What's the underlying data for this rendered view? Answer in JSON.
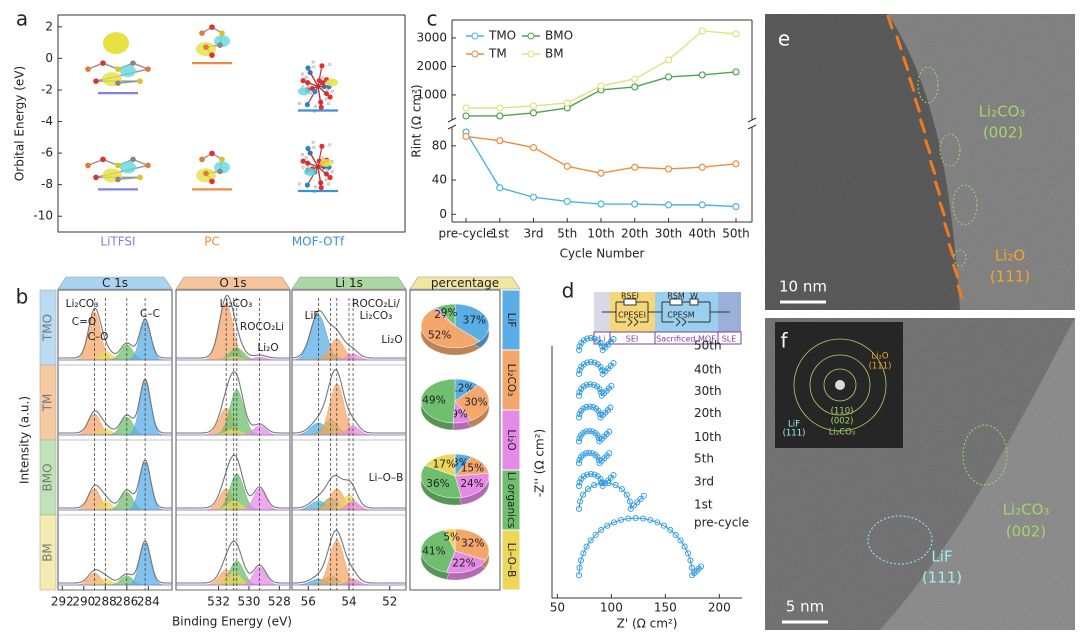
{
  "panel_a": {
    "label": "a",
    "y_label": "Orbital Energy (eV)",
    "ylim": [
      -11,
      2.75
    ],
    "yticks": [
      -10,
      -8,
      -6,
      -4,
      -2,
      0,
      2
    ],
    "molecules": [
      {
        "name": "LiTFSI",
        "color": "#7f7fe6",
        "lumo": -2.2,
        "homo": -8.3
      },
      {
        "name": "PC",
        "color": "#f08c3c",
        "lumo": -0.3,
        "homo": -8.3
      },
      {
        "name": "MOF-OTf",
        "color": "#3d8fd6",
        "lumo": -3.3,
        "homo": -8.4
      }
    ]
  },
  "panel_b": {
    "label": "b",
    "y_label": "Intensity (a.u.)",
    "x_label": "Binding Energy (eV)",
    "pie_title": "percentage",
    "pie_tab_color": "#efe6a0",
    "species": [
      {
        "name": "LiF",
        "color": "#5aaee6"
      },
      {
        "name": "Li₂CO₃",
        "color": "#f4a76b"
      },
      {
        "name": "Li₂O",
        "color": "#e58be6"
      },
      {
        "name": "Li organics",
        "color": "#6fbf6f"
      },
      {
        "name": "Li–O–B",
        "color": "#ecd75a"
      }
    ],
    "regions": [
      {
        "name": "C 1s",
        "tab_color": "#a8d4f2",
        "xlim": [
          292.4,
          281.8
        ],
        "xticks": [
          292,
          290,
          288,
          286,
          284
        ],
        "components": [
          {
            "color": "#f4a76b",
            "center": 289,
            "width": 0.55
          },
          {
            "color": "#ecd75a",
            "center": 288,
            "width": 0.55
          },
          {
            "color": "#6fbf6f",
            "center": 286,
            "width": 0.55
          },
          {
            "color": "#5aaee6",
            "center": 284.3,
            "width": 0.5
          }
        ],
        "annotations": [
          "Li₂CO₃",
          "C=O",
          "C–O",
          "C–C"
        ]
      },
      {
        "name": "O 1s",
        "tab_color": "#f6c49a",
        "xlim": [
          534.8,
          527.3
        ],
        "xticks": [
          532,
          530,
          528
        ],
        "components": [
          {
            "color": "#f4a76b",
            "center": 531.5,
            "width": 0.45
          },
          {
            "color": "#6fbf6f",
            "center": 530.8,
            "width": 0.45
          },
          {
            "color": "#ecd75a",
            "center": 531.0,
            "width": 0.45
          },
          {
            "color": "#e58be6",
            "center": 529.3,
            "width": 0.4
          }
        ],
        "annotations": [
          "Li₂CO₃",
          "ROCO₂Li",
          "Li₂O"
        ]
      },
      {
        "name": "Li 1s",
        "tab_color": "#a9d9a0",
        "xlim": [
          56.8,
          51.2
        ],
        "xticks": [
          56,
          54,
          52
        ],
        "components": [
          {
            "color": "#5aaee6",
            "center": 55.5,
            "width": 0.38
          },
          {
            "color": "#6fbf6f",
            "center": 54.9,
            "width": 0.35
          },
          {
            "color": "#f4a76b",
            "center": 54.6,
            "width": 0.35
          },
          {
            "color": "#ecd75a",
            "center": 54.0,
            "width": 0.3
          },
          {
            "color": "#e58be6",
            "center": 53.8,
            "width": 0.3
          }
        ],
        "annotations": [
          "LiF",
          "ROCO₂Li/",
          "Li₂CO₃",
          "Li₂O"
        ]
      }
    ],
    "samples": [
      {
        "name": "TMO",
        "tab_color": "#b9dcf3",
        "heights": [
          [
            0.8,
            0.15,
            0.25,
            0.65
          ],
          [
            0.95,
            0.2,
            0.05,
            0.05
          ],
          [
            0.75,
            0.1,
            0.35,
            0.05,
            0.1
          ]
        ],
        "pie": {
          "values": [
            37,
            52,
            2,
            9
          ],
          "value_labels": [
            "37%",
            "52%",
            "2%",
            "9%"
          ],
          "colors": [
            "#5aaee6",
            "#f4a76b",
            "#e58be6",
            "#6fbf6f"
          ]
        }
      },
      {
        "name": "TM",
        "tab_color": "#f7c9a3",
        "heights": [
          [
            0.35,
            0.1,
            0.3,
            0.9
          ],
          [
            0.45,
            0.75,
            0.1,
            0.15
          ],
          [
            0.2,
            0.25,
            0.85,
            0.05,
            0.15
          ]
        ],
        "pie": {
          "values": [
            12,
            30,
            9,
            49
          ],
          "value_labels": [
            "12%",
            "30%",
            "9%",
            "49%"
          ],
          "colors": [
            "#5aaee6",
            "#f4a76b",
            "#e58be6",
            "#6fbf6f"
          ]
        }
      },
      {
        "name": "BMO",
        "tab_color": "#bfe3b6",
        "heights": [
          [
            0.35,
            0.15,
            0.3,
            0.8
          ],
          [
            0.35,
            0.6,
            0.15,
            0.35
          ],
          [
            0.15,
            0.2,
            0.35,
            0.25,
            0.15
          ]
        ],
        "annotations": [
          "Li–O–B"
        ],
        "pie": {
          "values": [
            8,
            15,
            24,
            36,
            17
          ],
          "value_labels": [
            "8%",
            "15%",
            "24%",
            "36%",
            "17%"
          ],
          "colors": [
            "#5aaee6",
            "#f4a76b",
            "#e58be6",
            "#6fbf6f",
            "#ecd75a"
          ]
        }
      },
      {
        "name": "BM",
        "tab_color": "#f3ecb0",
        "heights": [
          [
            0.2,
            0.1,
            0.15,
            0.7
          ],
          [
            0.25,
            0.4,
            0.2,
            0.3
          ],
          [
            0.1,
            0.15,
            0.75,
            0.1,
            0.1
          ]
        ],
        "pie": {
          "values": [
            32,
            22,
            41,
            5
          ],
          "value_labels": [
            "32%",
            "22%",
            "41%",
            "5%"
          ],
          "colors": [
            "#f4a76b",
            "#e58be6",
            "#6fbf6f",
            "#ecd75a"
          ]
        }
      }
    ]
  },
  "panel_c": {
    "label": "c",
    "type": "line",
    "y_label": "Rint (Ω cm²)",
    "x_label": "Cycle Number",
    "categories": [
      "pre-cycle",
      "1st",
      "3rd",
      "5th",
      "10th",
      "20th",
      "30th",
      "40th",
      "50th"
    ],
    "ylim": [
      -9,
      102
    ],
    "yticks": [
      0,
      40,
      80
    ],
    "y2lim": [
      120,
      3630
    ],
    "y2ticks": [
      1000,
      2000,
      3000
    ],
    "series": [
      {
        "name": "TMO",
        "color": "#4db3e6",
        "values": [
          96,
          31,
          20,
          15,
          12,
          12,
          11,
          11,
          9
        ]
      },
      {
        "name": "TM",
        "color": "#f08c3c",
        "values": [
          91,
          86,
          78,
          56,
          48,
          55,
          53,
          55,
          59
        ]
      },
      {
        "name": "BMO",
        "color": "#4ca64c",
        "axis": "y2",
        "values": [
          263,
          263,
          369,
          544,
          1176,
          1281,
          1632,
          1702,
          1807
        ]
      },
      {
        "name": "BM",
        "color": "#e2e27a",
        "axis": "y2",
        "values": [
          544,
          544,
          614,
          720,
          1316,
          1562,
          2228,
          3246,
          3141
        ]
      }
    ]
  },
  "panel_d": {
    "label": "d",
    "x_label": "Z' (Ω cm²)",
    "y_label": "-Z'' (Ω cm²)",
    "xlim": [
      45,
      221
    ],
    "ylim": [
      -10,
      275
    ],
    "xticks": [
      50,
      100,
      150,
      200
    ],
    "color": "#2e9be0",
    "circuit": {
      "regions": [
        "Li",
        "SEI",
        "Sacrificed MOF",
        "SLE"
      ],
      "elements": [
        "RSEI",
        "CPESEI",
        "RSM",
        "W",
        "CPESM"
      ]
    },
    "curves": [
      {
        "name": "50th",
        "offset": 218,
        "start": 70,
        "end": 92,
        "tail": 10
      },
      {
        "name": "40th",
        "offset": 196,
        "start": 70,
        "end": 92,
        "tail": 10
      },
      {
        "name": "30th",
        "offset": 176,
        "start": 70,
        "end": 91,
        "tail": 9
      },
      {
        "name": "20th",
        "offset": 156,
        "start": 70,
        "end": 90,
        "tail": 9
      },
      {
        "name": "10th",
        "offset": 134,
        "start": 70,
        "end": 89,
        "tail": 9
      },
      {
        "name": "5th",
        "offset": 114,
        "start": 70,
        "end": 89,
        "tail": 9
      },
      {
        "name": "3rd",
        "offset": 93,
        "start": 70,
        "end": 92,
        "tail": 10
      },
      {
        "name": "1st",
        "offset": 72,
        "start": 70,
        "end": 118,
        "tail": 12
      },
      {
        "name": "pre-cycle",
        "offset": 11,
        "start": 70,
        "end": 175,
        "tail": 8
      }
    ]
  },
  "panel_e": {
    "label": "e",
    "scale_bar": "10 nm",
    "annotations": [
      {
        "text": "Li₂CO₃",
        "color": "#a6d46a"
      },
      {
        "text": "(002)",
        "color": "#a6d46a"
      },
      {
        "text": "Li₂O",
        "color": "#f2a71f"
      },
      {
        "text": "(111)",
        "color": "#f2a71f"
      }
    ]
  },
  "panel_f": {
    "label": "f",
    "scale_bar": "5 nm",
    "inset_annotations": [
      {
        "text": "Li₂O",
        "color": "#f2a71f"
      },
      {
        "text": "(111)",
        "color": "#f2a71f"
      },
      {
        "text": "LiF",
        "color": "#9eeef2"
      },
      {
        "text": "(111)",
        "color": "#9eeef2"
      },
      {
        "text": "(110)",
        "color": "#a6d46a"
      },
      {
        "text": "(002)",
        "color": "#a6d46a"
      },
      {
        "text": "Li₂CO₃",
        "color": "#a6d46a"
      }
    ],
    "annotations": [
      {
        "text": "Li₂CO₃",
        "color": "#a6d46a"
      },
      {
        "text": "(002)",
        "color": "#a6d46a"
      },
      {
        "text": "LiF",
        "color": "#9eeef2"
      },
      {
        "text": "(111)",
        "color": "#9eeef2"
      }
    ]
  }
}
